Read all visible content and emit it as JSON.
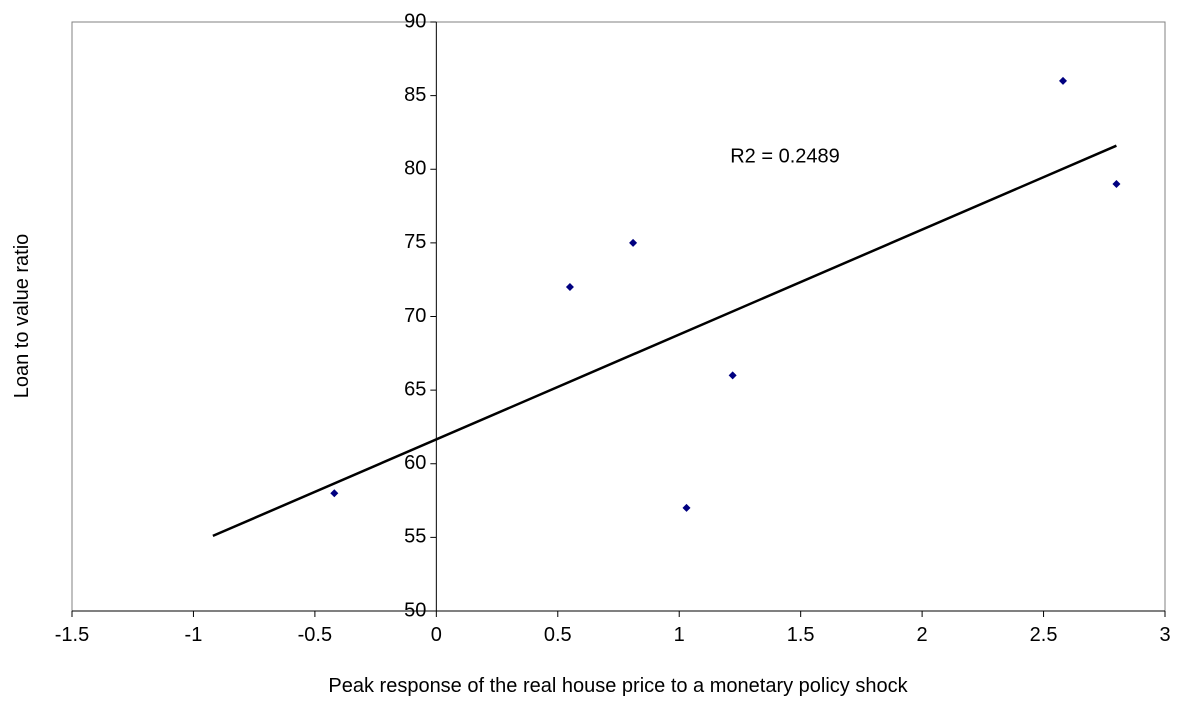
{
  "chart_data": {
    "type": "scatter",
    "x_label": "Peak response of the real house price to a monetary policy shock",
    "y_label": "Loan to value ratio",
    "xlim": [
      -1.5,
      3
    ],
    "xticks": [
      -1.5,
      -1,
      -0.5,
      0,
      0.5,
      1,
      1.5,
      2,
      2.5,
      3
    ],
    "ylim": [
      50,
      90
    ],
    "yticks": [
      50,
      55,
      60,
      65,
      70,
      75,
      80,
      85,
      90
    ],
    "series": [
      {
        "color": "#000080",
        "x": [
          -0.42,
          0.55,
          0.81,
          1.03,
          1.22,
          2.58,
          2.8
        ],
        "values": [
          58,
          72,
          75,
          57,
          66,
          86,
          79
        ]
      }
    ],
    "trendline": {
      "color": "#000000",
      "x": [
        -0.92,
        2.8
      ],
      "values": [
        55.1,
        81.6
      ]
    },
    "annotation": "R2 = 0.2489"
  }
}
